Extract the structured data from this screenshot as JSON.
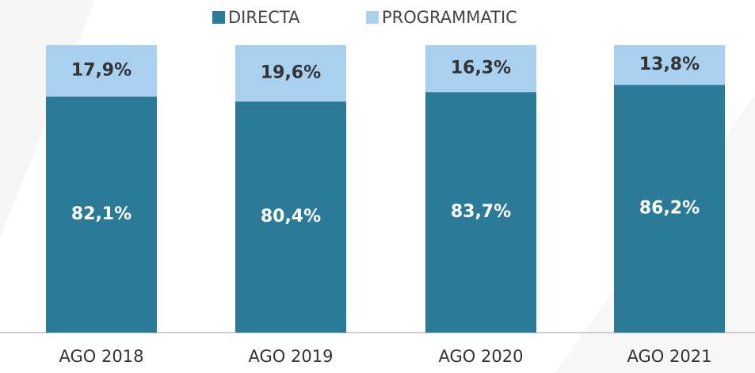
{
  "chart_data": {
    "type": "stacked_bar",
    "categories": [
      "AGO 2018",
      "AGO 2019",
      "AGO 2020",
      "AGO 2021"
    ],
    "series": [
      {
        "name": "DIRECTA",
        "color": "#2a7a98",
        "values": [
          82.1,
          80.4,
          83.7,
          86.2
        ],
        "value_labels": [
          "82,1%",
          "80,4%",
          "83,7%",
          "86,2%"
        ],
        "label_color": "#ffffff"
      },
      {
        "name": "PROGRAMMATIC",
        "color": "#a9d0ee",
        "values": [
          17.9,
          19.6,
          16.3,
          13.8
        ],
        "value_labels": [
          "17,9%",
          "19,6%",
          "16,3%",
          "13,8%"
        ],
        "label_color": "#333333"
      }
    ]
  }
}
